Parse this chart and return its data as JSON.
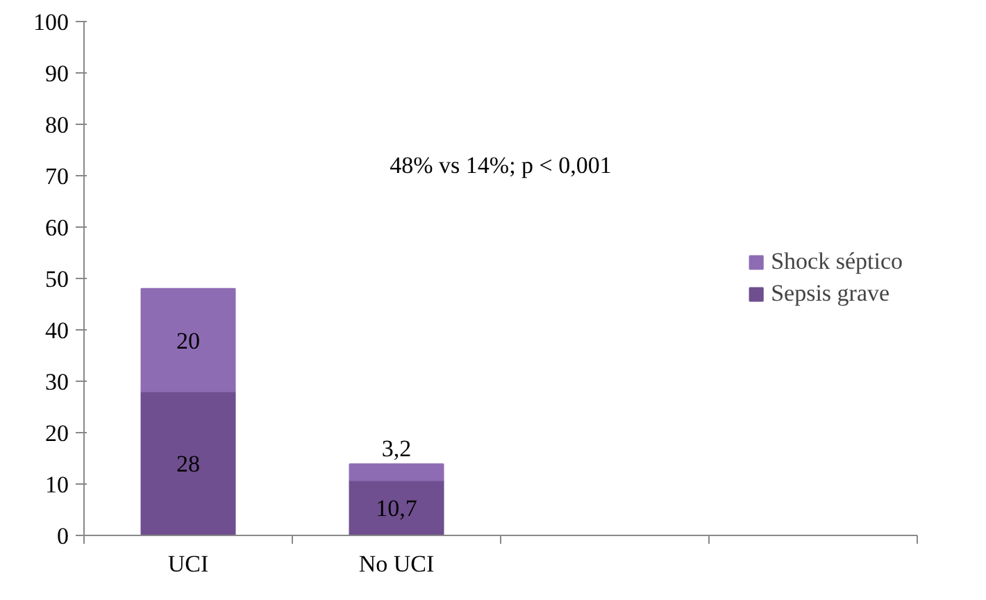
{
  "chart_data": {
    "type": "bar",
    "stacked": true,
    "categories": [
      "UCI",
      "No UCI",
      null,
      null
    ],
    "series": [
      {
        "name": "Sepsis grave",
        "color": "#6f4f8f",
        "values": [
          28,
          10.7,
          null,
          null
        ],
        "value_labels": [
          "28",
          "10,7",
          null,
          null
        ]
      },
      {
        "name": "Shock séptico",
        "color": "#8e6cb4",
        "values": [
          20,
          3.2,
          null,
          null
        ],
        "value_labels": [
          "20",
          "3,2",
          null,
          null
        ]
      }
    ],
    "ylim": [
      0,
      100
    ],
    "yticks": [
      0,
      10,
      20,
      30,
      40,
      50,
      60,
      70,
      80,
      90,
      100
    ],
    "annotations": [
      "48% vs 14%; p < 0,001"
    ],
    "legend": "right",
    "grid": false
  }
}
